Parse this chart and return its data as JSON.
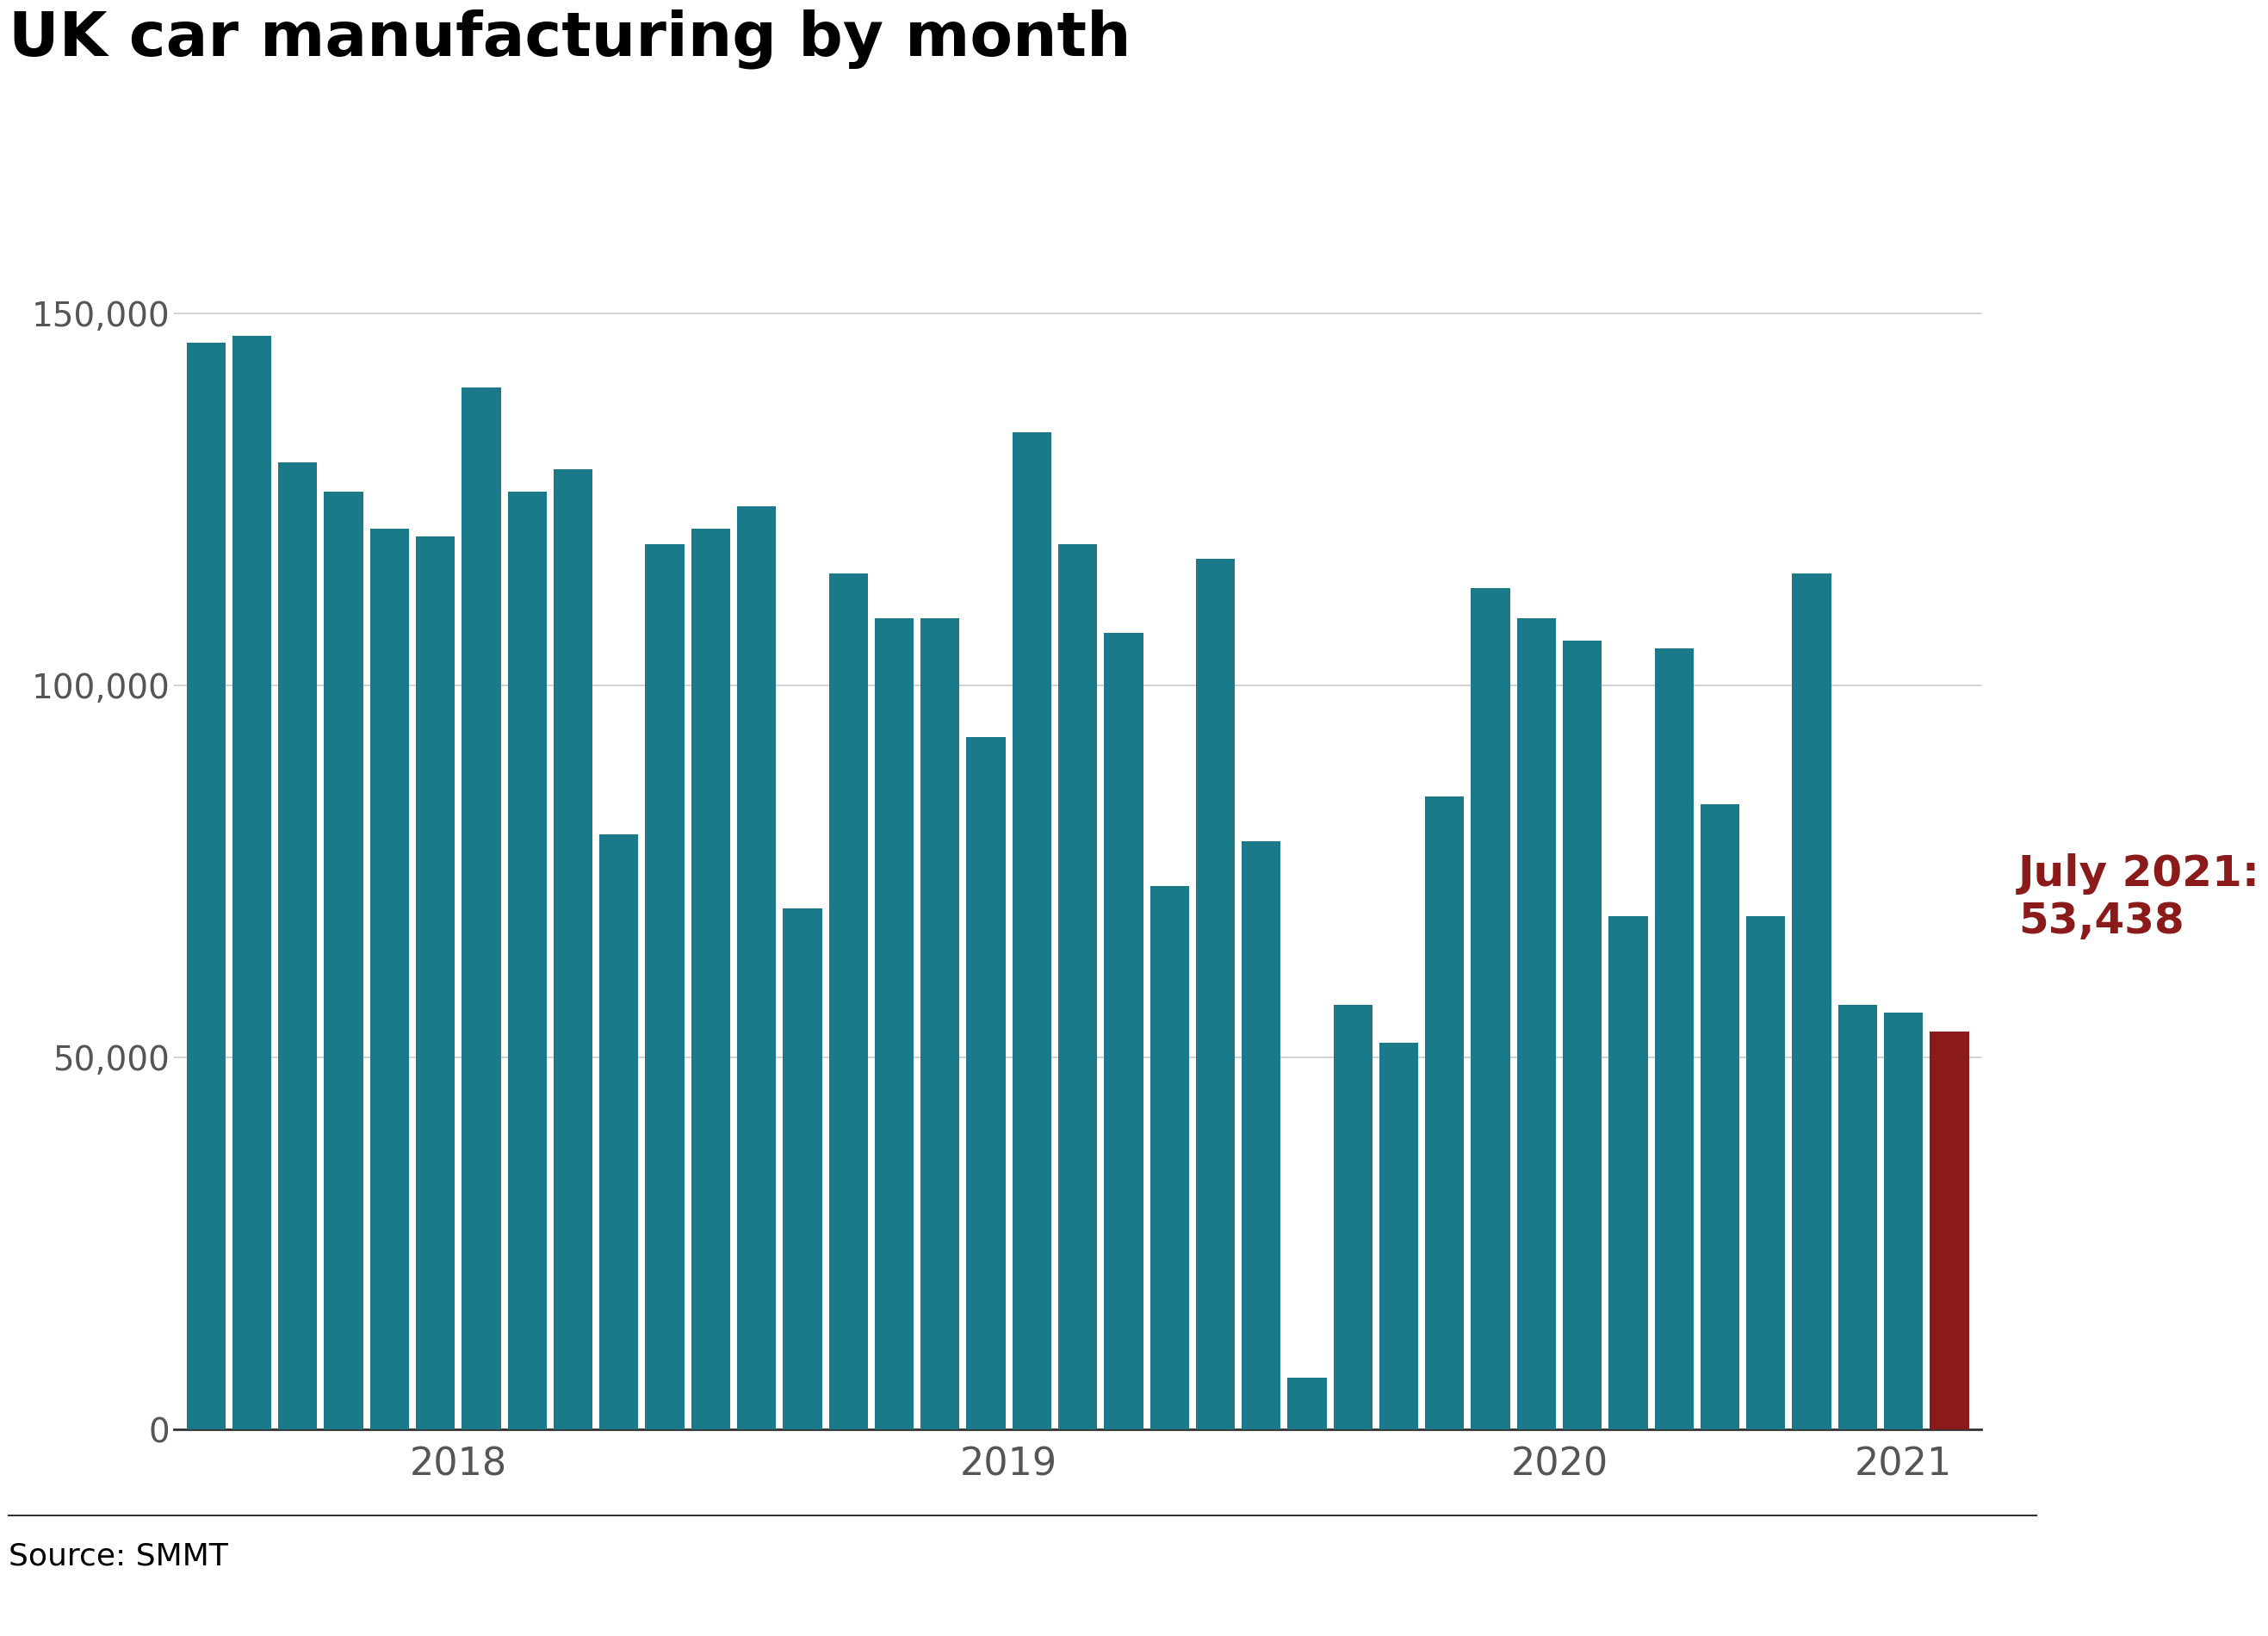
{
  "title": "UK car manufacturing by month",
  "source": "Source: SMMT",
  "bar_color": "#1a7a8a",
  "highlight_color": "#8b1a1a",
  "background_color": "#ffffff",
  "title_fontsize": 52,
  "tick_fontsize": 28,
  "annotation_fontsize": 36,
  "source_fontsize": 26,
  "ylim": [
    0,
    162000
  ],
  "yticks": [
    0,
    50000,
    100000,
    150000
  ],
  "ytick_labels": [
    "0",
    "50,000",
    "100,000",
    "150,000"
  ],
  "values": [
    146000,
    147000,
    130000,
    126000,
    121000,
    120000,
    140000,
    126000,
    129000,
    80000,
    119000,
    121000,
    124000,
    70000,
    115000,
    109000,
    109000,
    93000,
    134000,
    119000,
    107000,
    73000,
    117000,
    79000,
    7000,
    57000,
    52000,
    85000,
    113000,
    109000,
    106000,
    69000,
    105000,
    84000,
    69000,
    115000,
    57000,
    56000,
    53438
  ],
  "highlight_index": 38,
  "annotation_text": "July 2021:\n53,438",
  "grid_color": "#cccccc",
  "axis_color": "#333333",
  "xtick_color": "#555555",
  "ytick_color": "#555555"
}
